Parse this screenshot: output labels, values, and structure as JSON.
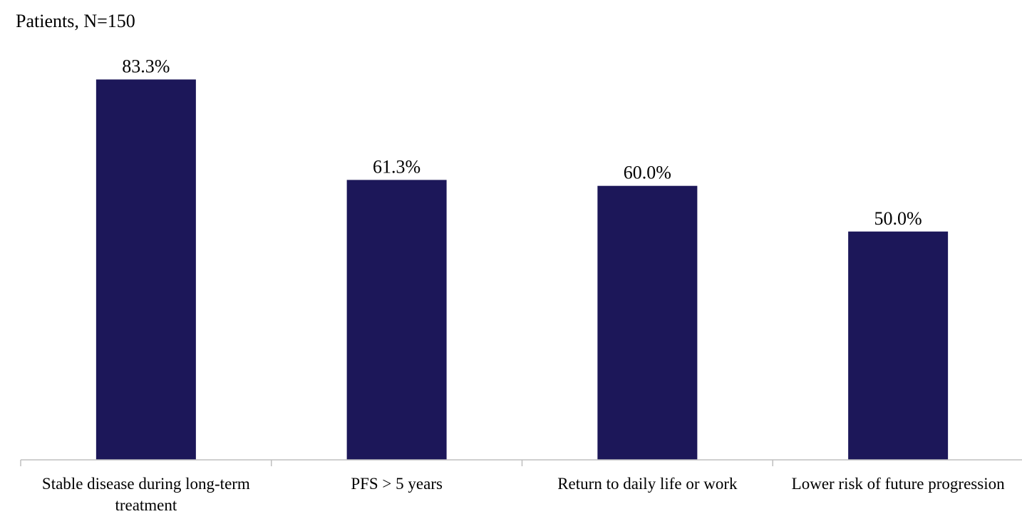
{
  "chart_data": {
    "type": "bar",
    "title": "",
    "xlabel": "",
    "ylabel": "Patients, N=150",
    "categories": [
      [
        "Stable disease during long-term",
        "treatment"
      ],
      [
        "PFS  >  5 years"
      ],
      [
        "Return to daily life or work"
      ],
      [
        "Lower risk of future progression"
      ]
    ],
    "values": [
      83.3,
      61.3,
      60.0,
      50.0
    ],
    "data_labels": [
      "83.3%",
      "61.3%",
      "60.0%",
      "50.0%"
    ],
    "ylim": [
      0,
      100
    ],
    "grid": false,
    "legend": "none",
    "bar_color": "#1c1759",
    "axis_color": "#bfbfbf"
  }
}
